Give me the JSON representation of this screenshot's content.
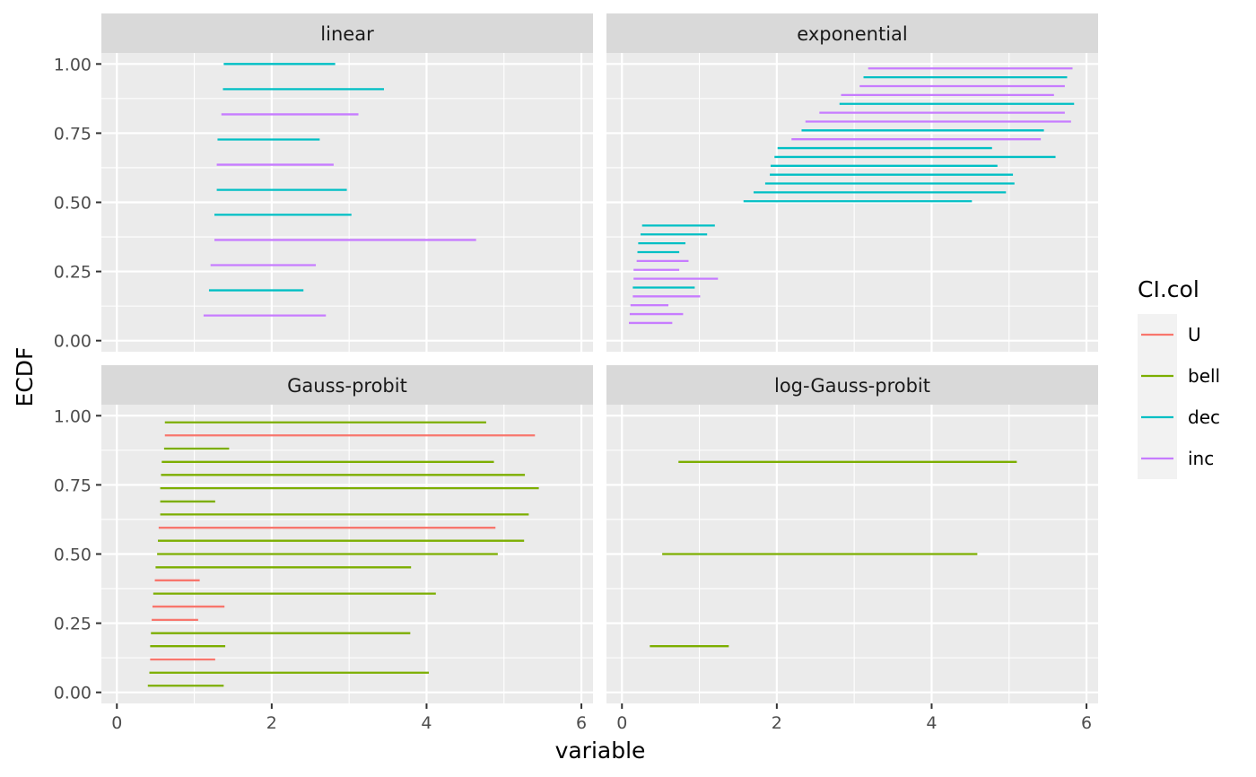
{
  "chart_data": {
    "type": "facet-interval",
    "xlabel": "variable",
    "ylabel": "ECDF",
    "xlim": [
      -0.2,
      6.15
    ],
    "ylim": [
      -0.04,
      1.04
    ],
    "x_ticks": [
      0,
      2,
      4,
      6
    ],
    "x_tick_labels": [
      "0",
      "2",
      "4",
      "6"
    ],
    "y_ticks": [
      0,
      0.25,
      0.5,
      0.75,
      1
    ],
    "y_tick_labels": [
      "0.00",
      "0.25",
      "0.50",
      "0.75",
      "1.00"
    ],
    "grid": true,
    "legend": {
      "title": "CI.col",
      "position": "right",
      "entries": [
        {
          "name": "U",
          "color": "#F8766D"
        },
        {
          "name": "bell",
          "color": "#7CAE00"
        },
        {
          "name": "dec",
          "color": "#00BFC4"
        },
        {
          "name": "inc",
          "color": "#C77CFF"
        }
      ]
    },
    "panels": [
      {
        "title": "linear",
        "segments": [
          {
            "y": 1.0,
            "xmin": 1.38,
            "xmax": 2.82,
            "col": "dec"
          },
          {
            "y": 0.909,
            "xmin": 1.37,
            "xmax": 3.45,
            "col": "dec"
          },
          {
            "y": 0.818,
            "xmin": 1.35,
            "xmax": 3.12,
            "col": "inc"
          },
          {
            "y": 0.727,
            "xmin": 1.3,
            "xmax": 2.62,
            "col": "dec"
          },
          {
            "y": 0.636,
            "xmin": 1.29,
            "xmax": 2.8,
            "col": "inc"
          },
          {
            "y": 0.545,
            "xmin": 1.29,
            "xmax": 2.97,
            "col": "dec"
          },
          {
            "y": 0.455,
            "xmin": 1.26,
            "xmax": 3.03,
            "col": "dec"
          },
          {
            "y": 0.364,
            "xmin": 1.26,
            "xmax": 4.64,
            "col": "inc"
          },
          {
            "y": 0.273,
            "xmin": 1.21,
            "xmax": 2.57,
            "col": "inc"
          },
          {
            "y": 0.182,
            "xmin": 1.19,
            "xmax": 2.41,
            "col": "dec"
          },
          {
            "y": 0.091,
            "xmin": 1.12,
            "xmax": 2.7,
            "col": "inc"
          }
        ]
      },
      {
        "title": "exponential",
        "segments": [
          {
            "y": 0.984,
            "xmin": 3.18,
            "xmax": 5.82,
            "col": "inc"
          },
          {
            "y": 0.952,
            "xmin": 3.12,
            "xmax": 5.75,
            "col": "dec"
          },
          {
            "y": 0.92,
            "xmin": 3.07,
            "xmax": 5.72,
            "col": "inc"
          },
          {
            "y": 0.888,
            "xmin": 2.83,
            "xmax": 5.58,
            "col": "inc"
          },
          {
            "y": 0.856,
            "xmin": 2.81,
            "xmax": 5.84,
            "col": "dec"
          },
          {
            "y": 0.824,
            "xmin": 2.55,
            "xmax": 5.72,
            "col": "inc"
          },
          {
            "y": 0.792,
            "xmin": 2.37,
            "xmax": 5.8,
            "col": "inc"
          },
          {
            "y": 0.76,
            "xmin": 2.32,
            "xmax": 5.45,
            "col": "dec"
          },
          {
            "y": 0.728,
            "xmin": 2.19,
            "xmax": 5.41,
            "col": "inc"
          },
          {
            "y": 0.696,
            "xmin": 2.01,
            "xmax": 4.78,
            "col": "dec"
          },
          {
            "y": 0.664,
            "xmin": 1.97,
            "xmax": 5.6,
            "col": "dec"
          },
          {
            "y": 0.632,
            "xmin": 1.92,
            "xmax": 4.85,
            "col": "dec"
          },
          {
            "y": 0.6,
            "xmin": 1.91,
            "xmax": 5.05,
            "col": "dec"
          },
          {
            "y": 0.568,
            "xmin": 1.85,
            "xmax": 5.07,
            "col": "dec"
          },
          {
            "y": 0.536,
            "xmin": 1.7,
            "xmax": 4.96,
            "col": "dec"
          },
          {
            "y": 0.504,
            "xmin": 1.57,
            "xmax": 4.52,
            "col": "dec"
          },
          {
            "y": 0.416,
            "xmin": 0.26,
            "xmax": 1.2,
            "col": "dec"
          },
          {
            "y": 0.384,
            "xmin": 0.24,
            "xmax": 1.1,
            "col": "dec"
          },
          {
            "y": 0.352,
            "xmin": 0.21,
            "xmax": 0.82,
            "col": "dec"
          },
          {
            "y": 0.32,
            "xmin": 0.2,
            "xmax": 0.74,
            "col": "dec"
          },
          {
            "y": 0.288,
            "xmin": 0.19,
            "xmax": 0.86,
            "col": "inc"
          },
          {
            "y": 0.256,
            "xmin": 0.15,
            "xmax": 0.74,
            "col": "inc"
          },
          {
            "y": 0.224,
            "xmin": 0.15,
            "xmax": 1.24,
            "col": "inc"
          },
          {
            "y": 0.192,
            "xmin": 0.14,
            "xmax": 0.94,
            "col": "dec"
          },
          {
            "y": 0.16,
            "xmin": 0.14,
            "xmax": 1.01,
            "col": "inc"
          },
          {
            "y": 0.128,
            "xmin": 0.11,
            "xmax": 0.6,
            "col": "inc"
          },
          {
            "y": 0.096,
            "xmin": 0.1,
            "xmax": 0.79,
            "col": "inc"
          },
          {
            "y": 0.064,
            "xmin": 0.09,
            "xmax": 0.65,
            "col": "inc"
          }
        ]
      },
      {
        "title": "Gauss-probit",
        "segments": [
          {
            "y": 0.976,
            "xmin": 0.62,
            "xmax": 4.77,
            "col": "bell"
          },
          {
            "y": 0.929,
            "xmin": 0.62,
            "xmax": 5.4,
            "col": "U"
          },
          {
            "y": 0.881,
            "xmin": 0.61,
            "xmax": 1.45,
            "col": "bell"
          },
          {
            "y": 0.833,
            "xmin": 0.58,
            "xmax": 4.87,
            "col": "bell"
          },
          {
            "y": 0.786,
            "xmin": 0.57,
            "xmax": 5.27,
            "col": "bell"
          },
          {
            "y": 0.738,
            "xmin": 0.56,
            "xmax": 5.45,
            "col": "bell"
          },
          {
            "y": 0.69,
            "xmin": 0.56,
            "xmax": 1.27,
            "col": "bell"
          },
          {
            "y": 0.643,
            "xmin": 0.56,
            "xmax": 5.32,
            "col": "bell"
          },
          {
            "y": 0.595,
            "xmin": 0.54,
            "xmax": 4.89,
            "col": "U"
          },
          {
            "y": 0.548,
            "xmin": 0.53,
            "xmax": 5.26,
            "col": "bell"
          },
          {
            "y": 0.5,
            "xmin": 0.52,
            "xmax": 4.92,
            "col": "bell"
          },
          {
            "y": 0.452,
            "xmin": 0.5,
            "xmax": 3.8,
            "col": "bell"
          },
          {
            "y": 0.405,
            "xmin": 0.49,
            "xmax": 1.07,
            "col": "U"
          },
          {
            "y": 0.357,
            "xmin": 0.47,
            "xmax": 4.12,
            "col": "bell"
          },
          {
            "y": 0.31,
            "xmin": 0.46,
            "xmax": 1.39,
            "col": "U"
          },
          {
            "y": 0.262,
            "xmin": 0.45,
            "xmax": 1.05,
            "col": "U"
          },
          {
            "y": 0.214,
            "xmin": 0.44,
            "xmax": 3.79,
            "col": "bell"
          },
          {
            "y": 0.167,
            "xmin": 0.43,
            "xmax": 1.4,
            "col": "bell"
          },
          {
            "y": 0.119,
            "xmin": 0.43,
            "xmax": 1.27,
            "col": "U"
          },
          {
            "y": 0.071,
            "xmin": 0.42,
            "xmax": 4.03,
            "col": "bell"
          },
          {
            "y": 0.024,
            "xmin": 0.4,
            "xmax": 1.38,
            "col": "bell"
          }
        ]
      },
      {
        "title": "log-Gauss-probit",
        "segments": [
          {
            "y": 0.833,
            "xmin": 0.73,
            "xmax": 5.1,
            "col": "bell"
          },
          {
            "y": 0.5,
            "xmin": 0.52,
            "xmax": 4.59,
            "col": "bell"
          },
          {
            "y": 0.167,
            "xmin": 0.36,
            "xmax": 1.38,
            "col": "bell"
          }
        ]
      }
    ]
  }
}
